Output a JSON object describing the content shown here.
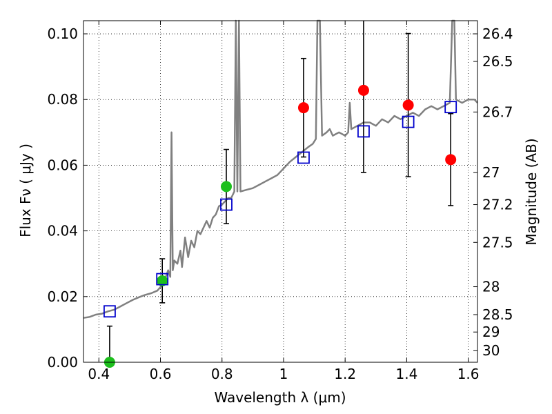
{
  "chart_data": {
    "type": "scatter",
    "xlabel": "Wavelength  λ (μm)",
    "ylabel_left": "Flux  Fν ( μJy )",
    "ylabel_right": "Magnitude (AB)",
    "xlim": [
      0.35,
      1.63
    ],
    "ylim": [
      0.0,
      0.104
    ],
    "grid": true,
    "x_ticks": [
      0.4,
      0.6,
      0.8,
      1.0,
      1.2,
      1.4,
      1.6
    ],
    "x_tick_labels": [
      "0.4",
      "0.6",
      "0.8",
      "1",
      "1.2",
      "1.4",
      "1.6"
    ],
    "y_ticks": [
      0.0,
      0.02,
      0.04,
      0.06,
      0.08,
      0.1
    ],
    "y_tick_labels": [
      "0.00",
      "0.02",
      "0.04",
      "0.06",
      "0.08",
      "0.10"
    ],
    "right_ticks": [
      {
        "label": "26.4",
        "flux": 0.1
      },
      {
        "label": "26.5",
        "flux": 0.0916
      },
      {
        "label": "26.7",
        "flux": 0.0762
      },
      {
        "label": "27",
        "flux": 0.0578
      },
      {
        "label": "27.2",
        "flux": 0.048
      },
      {
        "label": "27.5",
        "flux": 0.0365
      },
      {
        "label": "28",
        "flux": 0.023
      },
      {
        "label": "28.5",
        "flux": 0.0145
      },
      {
        "label": "29",
        "flux": 0.0092
      },
      {
        "label": "30",
        "flux": 0.0036
      }
    ],
    "model_spectrum": {
      "color": "#808080",
      "points": [
        [
          0.35,
          0.0135
        ],
        [
          0.37,
          0.0138
        ],
        [
          0.39,
          0.0145
        ],
        [
          0.41,
          0.0148
        ],
        [
          0.43,
          0.0155
        ],
        [
          0.45,
          0.016
        ],
        [
          0.47,
          0.017
        ],
        [
          0.49,
          0.018
        ],
        [
          0.51,
          0.019
        ],
        [
          0.53,
          0.0198
        ],
        [
          0.55,
          0.0205
        ],
        [
          0.57,
          0.021
        ],
        [
          0.59,
          0.0218
        ],
        [
          0.61,
          0.024
        ],
        [
          0.625,
          0.028
        ],
        [
          0.632,
          0.026
        ],
        [
          0.636,
          0.07
        ],
        [
          0.64,
          0.028
        ],
        [
          0.645,
          0.031
        ],
        [
          0.655,
          0.03
        ],
        [
          0.665,
          0.034
        ],
        [
          0.67,
          0.029
        ],
        [
          0.68,
          0.038
        ],
        [
          0.69,
          0.032
        ],
        [
          0.7,
          0.037
        ],
        [
          0.71,
          0.035
        ],
        [
          0.72,
          0.04
        ],
        [
          0.73,
          0.039
        ],
        [
          0.75,
          0.043
        ],
        [
          0.76,
          0.041
        ],
        [
          0.77,
          0.044
        ],
        [
          0.78,
          0.045
        ],
        [
          0.79,
          0.0475
        ],
        [
          0.8,
          0.048
        ],
        [
          0.81,
          0.049
        ],
        [
          0.82,
          0.05
        ],
        [
          0.83,
          0.05
        ],
        [
          0.84,
          0.052
        ],
        [
          0.845,
          0.104
        ],
        [
          0.85,
          0.052
        ],
        [
          0.855,
          0.104
        ],
        [
          0.86,
          0.052
        ],
        [
          0.88,
          0.0525
        ],
        [
          0.9,
          0.053
        ],
        [
          0.92,
          0.054
        ],
        [
          0.94,
          0.055
        ],
        [
          0.96,
          0.056
        ],
        [
          0.98,
          0.057
        ],
        [
          1.0,
          0.059
        ],
        [
          1.02,
          0.061
        ],
        [
          1.04,
          0.0625
        ],
        [
          1.06,
          0.064
        ],
        [
          1.08,
          0.0655
        ],
        [
          1.095,
          0.0665
        ],
        [
          1.105,
          0.068
        ],
        [
          1.11,
          0.104
        ],
        [
          1.118,
          0.104
        ],
        [
          1.125,
          0.069
        ],
        [
          1.14,
          0.07
        ],
        [
          1.15,
          0.071
        ],
        [
          1.16,
          0.069
        ],
        [
          1.18,
          0.07
        ],
        [
          1.2,
          0.069
        ],
        [
          1.21,
          0.07
        ],
        [
          1.215,
          0.079
        ],
        [
          1.22,
          0.071
        ],
        [
          1.24,
          0.072
        ],
        [
          1.26,
          0.073
        ],
        [
          1.28,
          0.073
        ],
        [
          1.3,
          0.072
        ],
        [
          1.32,
          0.074
        ],
        [
          1.34,
          0.073
        ],
        [
          1.36,
          0.075
        ],
        [
          1.38,
          0.074
        ],
        [
          1.4,
          0.075
        ],
        [
          1.42,
          0.076
        ],
        [
          1.44,
          0.075
        ],
        [
          1.46,
          0.077
        ],
        [
          1.48,
          0.078
        ],
        [
          1.5,
          0.077
        ],
        [
          1.52,
          0.078
        ],
        [
          1.54,
          0.079
        ],
        [
          1.548,
          0.104
        ],
        [
          1.555,
          0.104
        ],
        [
          1.56,
          0.08
        ],
        [
          1.58,
          0.079
        ],
        [
          1.6,
          0.08
        ],
        [
          1.62,
          0.08
        ],
        [
          1.63,
          0.079
        ]
      ]
    },
    "series": [
      {
        "marker": "circle",
        "color": "#1dbf1d",
        "points": [
          {
            "x": 0.435,
            "y": 0.0,
            "yerr": 0.011
          },
          {
            "x": 0.606,
            "y": 0.0248,
            "yerr": 0.0067
          },
          {
            "x": 0.814,
            "y": 0.0535,
            "yerr": 0.0113
          }
        ]
      },
      {
        "marker": "circle",
        "color": "#ff0000",
        "points": [
          {
            "x": 1.065,
            "y": 0.0775,
            "yerr": 0.015
          },
          {
            "x": 1.26,
            "y": 0.0828,
            "yerr": 0.025
          },
          {
            "x": 1.405,
            "y": 0.0783,
            "yerr": 0.0218
          },
          {
            "x": 1.543,
            "y": 0.0617,
            "yerr": 0.014
          }
        ]
      },
      {
        "marker": "open-square",
        "color": "#0000cc",
        "points": [
          {
            "x": 0.435,
            "y": 0.0155
          },
          {
            "x": 0.606,
            "y": 0.0253
          },
          {
            "x": 0.814,
            "y": 0.048
          },
          {
            "x": 1.065,
            "y": 0.0623
          },
          {
            "x": 1.26,
            "y": 0.0703
          },
          {
            "x": 1.405,
            "y": 0.0732
          },
          {
            "x": 1.543,
            "y": 0.0777
          }
        ]
      }
    ]
  }
}
